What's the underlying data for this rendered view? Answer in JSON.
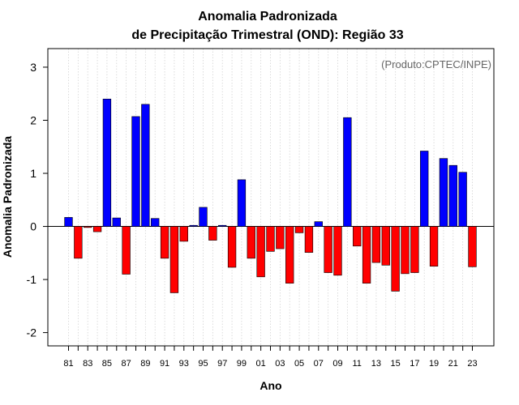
{
  "chart_data": {
    "type": "bar",
    "title_lines": [
      "Anomalia Padronizada",
      "de Precipitação Trimestral (OND): Região 33"
    ],
    "xlabel": "Ano",
    "ylabel": "Anomalia Padronizada",
    "annotation": "(Produto:CPTEC/INPE)",
    "ylim": [
      -2.25,
      3.35
    ],
    "yticks": [
      -2,
      -1,
      0,
      1,
      2,
      3
    ],
    "yticklabels": [
      "-2",
      "-1",
      "0",
      "1",
      "2",
      "3"
    ],
    "categories": [
      "81",
      "82",
      "83",
      "84",
      "85",
      "86",
      "87",
      "88",
      "89",
      "90",
      "91",
      "92",
      "93",
      "94",
      "95",
      "96",
      "97",
      "98",
      "99",
      "00",
      "01",
      "02",
      "03",
      "04",
      "05",
      "06",
      "07",
      "08",
      "09",
      "10",
      "11",
      "12",
      "13",
      "14",
      "15",
      "16",
      "17",
      "18",
      "19",
      "20",
      "21",
      "22",
      "23"
    ],
    "x_tick_labels": [
      "81",
      "83",
      "85",
      "87",
      "89",
      "91",
      "93",
      "95",
      "97",
      "99",
      "01",
      "03",
      "05",
      "07",
      "09",
      "11",
      "13",
      "15",
      "17",
      "19",
      "21",
      "23"
    ],
    "values": [
      0.17,
      -0.6,
      -0.02,
      -0.1,
      2.4,
      0.16,
      -0.9,
      2.07,
      2.3,
      0.15,
      -0.6,
      -1.25,
      -0.28,
      0.02,
      0.36,
      -0.26,
      0.02,
      -0.77,
      0.88,
      -0.6,
      -0.95,
      -0.47,
      -0.42,
      -1.07,
      -0.12,
      -0.49,
      0.09,
      -0.87,
      -0.92,
      2.05,
      -0.37,
      -1.07,
      -0.68,
      -0.73,
      -1.22,
      -0.89,
      -0.87,
      1.42,
      -0.75,
      1.28,
      1.15,
      1.02,
      -0.76
    ],
    "colors": {
      "positive": "#0000ff",
      "negative": "#ff0000",
      "bar_edge": "#000000",
      "grid": "#d3d3d3",
      "annotation": "#666666"
    },
    "grid": true
  }
}
